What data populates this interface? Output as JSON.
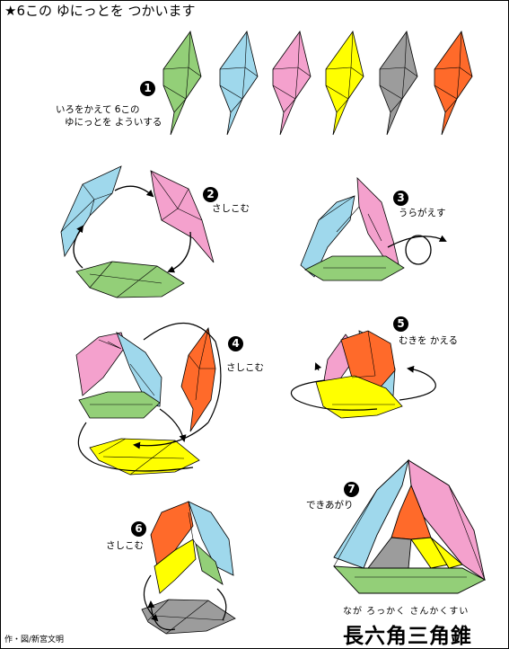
{
  "title": "★6この ゆにっとを つかいます",
  "steps": [
    {
      "number": "1",
      "caption_line1": "いろをかえて 6この",
      "caption_line2": "ゆにっとを よういする"
    },
    {
      "number": "2",
      "caption": "さしこむ"
    },
    {
      "number": "3",
      "caption": "うらがえす"
    },
    {
      "number": "4",
      "caption": "さしこむ"
    },
    {
      "number": "5",
      "caption": "むきを かえる"
    },
    {
      "number": "6",
      "caption": "さしこむ"
    },
    {
      "number": "7",
      "caption": "できあがり"
    }
  ],
  "result": {
    "reading": "なが ろっかく さんかくすい",
    "name": "長六角三角錐"
  },
  "credit": "作・図/新宮文明",
  "unit_colors": {
    "green": "#93cf78",
    "blue": "#9fd8ec",
    "pink": "#f4a1cd",
    "yellow": "#ffff00",
    "gray": "#9c9c9c",
    "orange": "#ff6a2a"
  }
}
